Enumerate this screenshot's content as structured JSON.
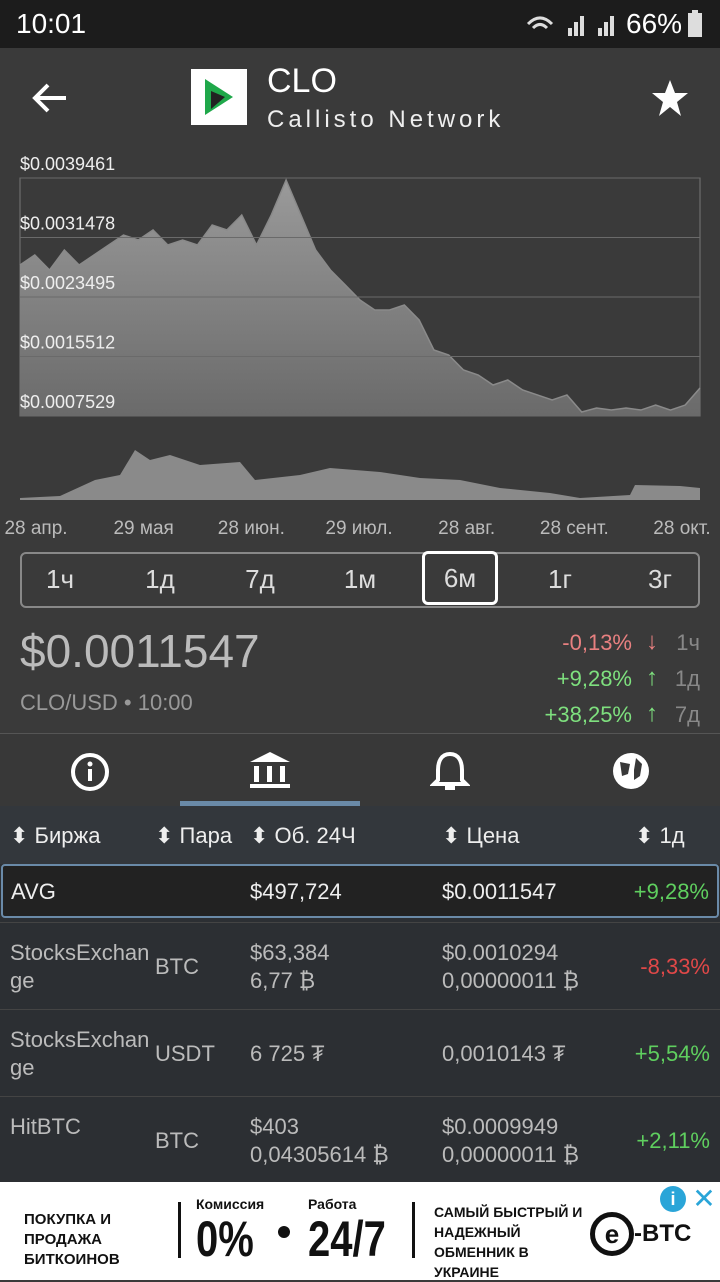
{
  "status": {
    "time": "10:01",
    "battery": "66%"
  },
  "header": {
    "symbol": "CLO",
    "name": "Callisto Network"
  },
  "chart_data": {
    "type": "area",
    "color": "#8a8a8a",
    "values": [
      0.002779,
      0.002913,
      0.002712,
      0.00298,
      0.002779,
      0.002913,
      0.003047,
      0.003181,
      0.003114,
      0.003249,
      0.003047,
      0.003114,
      0.003047,
      0.003316,
      0.003249,
      0.00345,
      0.003047,
      0.00345,
      0.003919,
      0.00345,
      0.00298,
      0.002712,
      0.002511,
      0.002309,
      0.002175,
      0.002175,
      0.002242,
      0.002041,
      0.001639,
      0.001571,
      0.00137,
      0.001303,
      0.001169,
      0.001236,
      0.001102,
      0.001035,
      0.000968,
      0.001035,
      0.000807,
      0.00086,
      0.000833,
      0.00086,
      0.000833,
      0.0009,
      0.000833,
      0.0009,
      0.001129
    ],
    "ylim": [
      0.0007529,
      0.0039461
    ],
    "yticks": [
      {
        "value": 0.0007529,
        "label": "$0.0007529"
      },
      {
        "value": 0.0015512,
        "label": "$0.0015512"
      },
      {
        "value": 0.0023495,
        "label": "$0.0023495"
      },
      {
        "value": 0.0031478,
        "label": "$0.0031478"
      },
      {
        "value": 0.0039461,
        "label": "$0.0039461"
      }
    ],
    "grid": true,
    "x_labels": [
      "28 апр.",
      "29 мая",
      "28 июн.",
      "29 июл.",
      "28 авг.",
      "28 сент.",
      "28 окт."
    ]
  },
  "ranges": {
    "options": [
      "1ч",
      "1д",
      "7д",
      "1м",
      "6м",
      "1г",
      "3г"
    ],
    "selected": 4
  },
  "price": {
    "value": "$0.0011547",
    "pair_time": "CLO/USD • 10:00",
    "changes": [
      {
        "value": "-0,13%",
        "period": "1ч",
        "color": "#e88080"
      },
      {
        "value": "+9,28%",
        "period": "1д",
        "color": "#7ee07e"
      },
      {
        "value": "+38,25%",
        "period": "7д",
        "color": "#7ee07e"
      }
    ]
  },
  "table": {
    "header": [
      "Биржа",
      "Пара",
      "Об. 24Ч",
      "Цена",
      "1д"
    ],
    "avg": {
      "exchange": "AVG",
      "volume": "$497,724",
      "price": "$0.0011547",
      "change": "+9,28%",
      "color": "#5fcf5f"
    },
    "rows": [
      {
        "exchange": "StocksExchange",
        "pair": "BTC",
        "volume": [
          "$63,384",
          "6,77 ₿"
        ],
        "price": [
          "$0.0010294",
          "0,00000011 ₿"
        ],
        "change": "-8,33%",
        "color": "#e04848"
      },
      {
        "exchange": "StocksExchange",
        "pair": "USDT",
        "volume": [
          "6 725 ₮"
        ],
        "price": [
          "0,0010143 ₮"
        ],
        "change": "+5,54%",
        "color": "#5fcf5f"
      },
      {
        "exchange": "HitBTC",
        "pair": "BTC",
        "volume": [
          "$403",
          "0,04305614 ₿"
        ],
        "price": [
          "$0.0009949",
          "0,00000011 ₿"
        ],
        "change": "+2,11%",
        "color": "#5fcf5f"
      }
    ]
  },
  "ad": {
    "left": "ПОКУПКА И ПРОДАЖА БИТКОИНОВ",
    "fee_label": "Комиссия",
    "fee": "0%",
    "work_label": "Работа",
    "work": "24/7",
    "right": "САМЫЙ БЫСТРЫЙ И НАДЕЖНЫЙ ОБМЕННИК В УКРАИНЕ",
    "brand": "-BTC"
  }
}
